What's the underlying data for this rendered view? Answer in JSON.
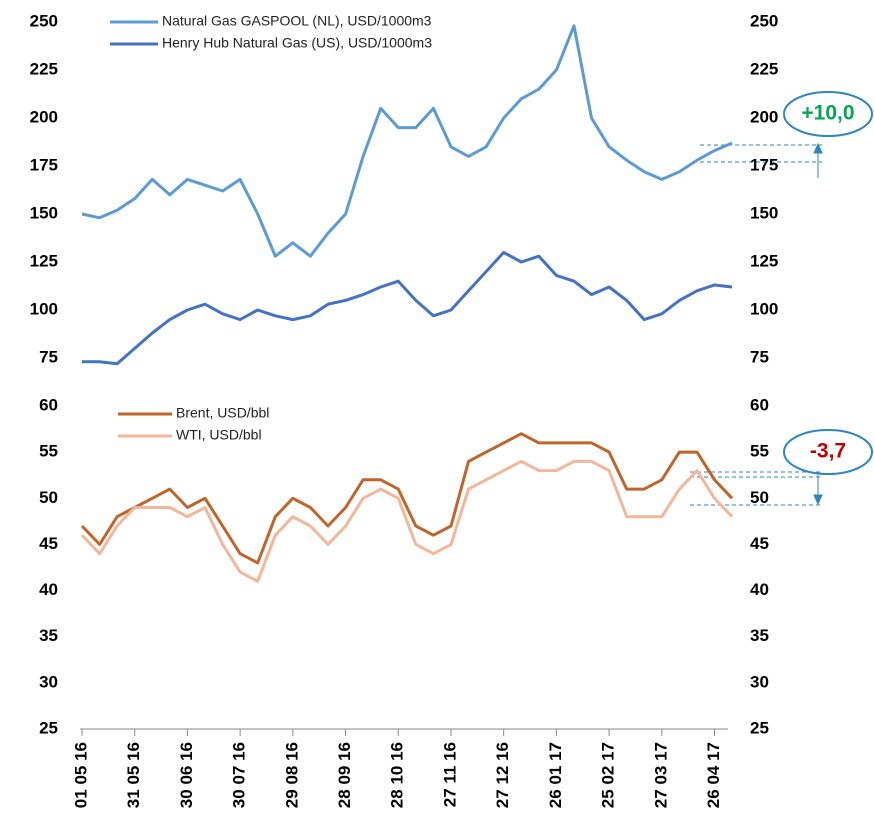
{
  "chart_data": [
    {
      "type": "line",
      "ylim": [
        75,
        250
      ],
      "yticks": [
        75,
        100,
        125,
        150,
        175,
        200,
        225,
        250
      ],
      "annotation": "+10,0",
      "series": [
        {
          "name": "Natural Gas GASPOOL (NL), USD/1000m3",
          "color": "#5b9bd5",
          "values": [
            150,
            148,
            152,
            158,
            168,
            160,
            168,
            165,
            162,
            168,
            150,
            128,
            135,
            128,
            140,
            150,
            180,
            205,
            195,
            195,
            205,
            185,
            180,
            185,
            200,
            210,
            215,
            225,
            248,
            200,
            185,
            178,
            172,
            168,
            172,
            178,
            183,
            187
          ]
        },
        {
          "name": "Henry Hub Natural Gas (US), USD/1000m3",
          "color": "#4472c4",
          "values": [
            73,
            73,
            72,
            80,
            88,
            95,
            100,
            103,
            98,
            95,
            100,
            97,
            95,
            97,
            103,
            105,
            108,
            112,
            115,
            105,
            97,
            100,
            110,
            120,
            130,
            125,
            128,
            118,
            115,
            108,
            112,
            105,
            95,
            98,
            105,
            110,
            113,
            112
          ]
        }
      ]
    },
    {
      "type": "line",
      "ylim": [
        25,
        60
      ],
      "yticks": [
        25,
        30,
        35,
        40,
        45,
        50,
        55,
        60
      ],
      "annotation": "-3,7",
      "categories": [
        "01 05 16",
        null,
        null,
        "31 05 16",
        null,
        null,
        "30 06 16",
        null,
        null,
        "30 07 16",
        null,
        null,
        "29 08 16",
        null,
        null,
        "28 09 16",
        null,
        null,
        "28 10 16",
        null,
        null,
        "27 11 16",
        null,
        null,
        "27 12 16",
        null,
        null,
        "26 01 17",
        null,
        null,
        "25 02 17",
        null,
        null,
        "27 03 17",
        null,
        null,
        "26 04 17",
        null
      ],
      "series": [
        {
          "name": "Brent, USD/bbl",
          "color": "#c0652a",
          "values": [
            47,
            45,
            48,
            49,
            50,
            51,
            49,
            50,
            47,
            44,
            43,
            48,
            50,
            49,
            47,
            49,
            52,
            52,
            51,
            47,
            46,
            47,
            54,
            55,
            56,
            57,
            56,
            56,
            56,
            56,
            55,
            51,
            51,
            52,
            55,
            55,
            52,
            50
          ]
        },
        {
          "name": "WTI, USD/bbl",
          "color": "#f4b69a",
          "values": [
            46,
            44,
            47,
            49,
            49,
            49,
            48,
            49,
            45,
            42,
            41,
            46,
            48,
            47,
            45,
            47,
            50,
            51,
            50,
            45,
            44,
            45,
            51,
            52,
            53,
            54,
            53,
            53,
            54,
            54,
            53,
            48,
            48,
            48,
            51,
            53,
            50,
            48
          ]
        }
      ]
    }
  ]
}
